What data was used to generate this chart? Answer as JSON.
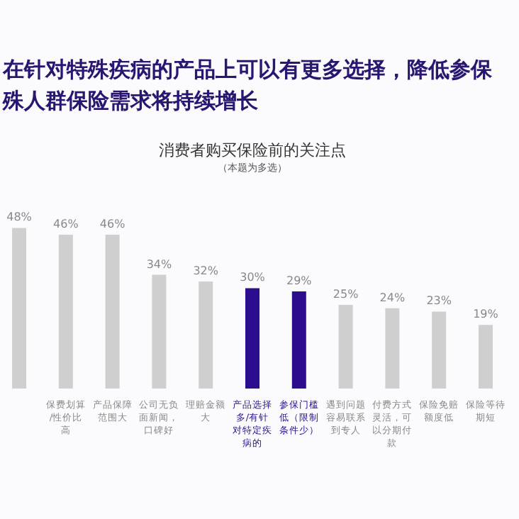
{
  "chart_data": {
    "type": "bar",
    "title": "在针对特殊疾病的产品上可以有更多选择，降低参保殊人群保险需求将持续增长",
    "subtitle": "消费者购买保险前的关注点",
    "annotations": [
      "（本题为多选）"
    ],
    "categories": [
      null,
      "保费划算/性价比高",
      "产品保障范围大",
      "公司无负面新闻，口碑好",
      "理赔金额大",
      "产品选择多/有针对特定疾病的",
      "参保门槛低（限制条件少）",
      "遇到问题容易联系到专人",
      "付费方式灵活，可以分期付款",
      "保险免赔额度低",
      "保险等待期短"
    ],
    "values": [
      48,
      46,
      46,
      34,
      32,
      30,
      29,
      25,
      24,
      23,
      19
    ],
    "colors": [
      "#cfcfcf",
      "#cfcfcf",
      "#cfcfcf",
      "#cfcfcf",
      "#cfcfcf",
      "#2b0d8e",
      "#2b0d8e",
      "#cfcfcf",
      "#cfcfcf",
      "#cfcfcf",
      "#cfcfcf"
    ],
    "value_labels": [
      "48%",
      "46%",
      "46%",
      "34%",
      "32%",
      "30%",
      "29%",
      "25%",
      "24%",
      "23%",
      "19%"
    ]
  }
}
